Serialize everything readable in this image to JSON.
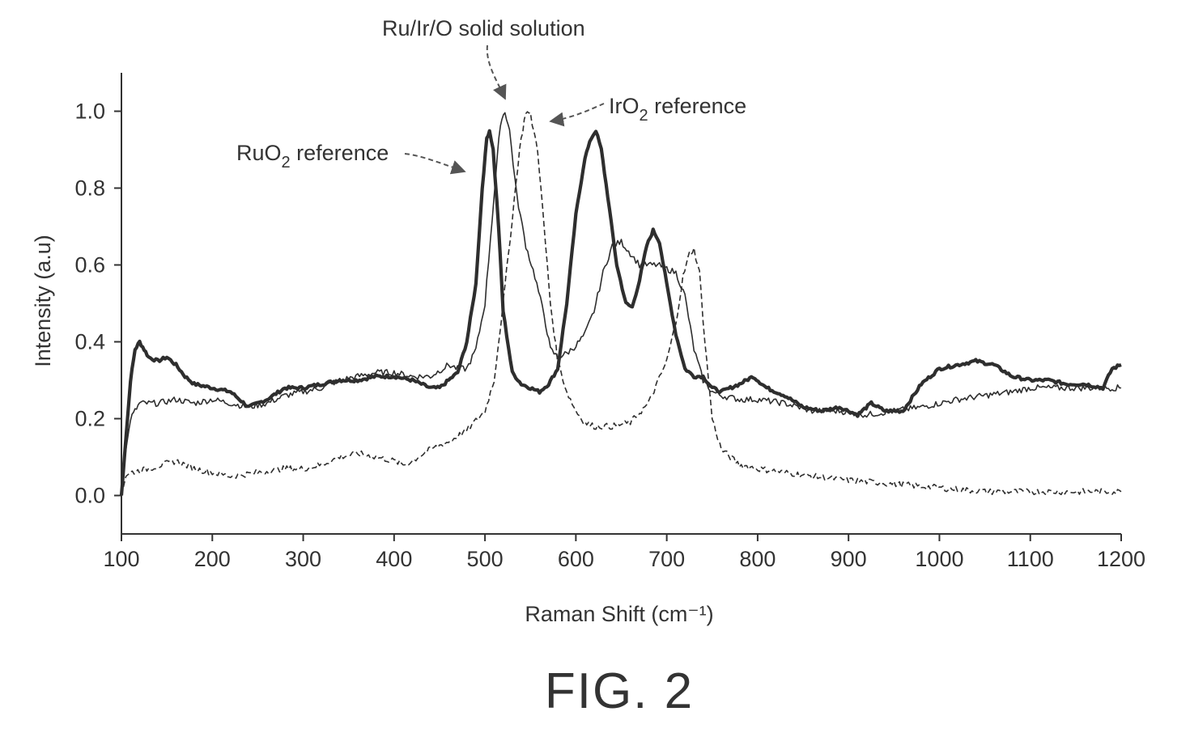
{
  "chart_data": {
    "type": "line",
    "title": "",
    "xlabel": "Raman Shift (cm⁻¹)",
    "ylabel": "Intensity (a.u)",
    "xlim": [
      100,
      1200
    ],
    "ylim": [
      -0.1,
      1.1
    ],
    "xticks": [
      100,
      200,
      300,
      400,
      500,
      600,
      700,
      800,
      900,
      1000,
      1100,
      1200
    ],
    "yticks": [
      0.0,
      0.2,
      0.4,
      0.6,
      0.8,
      1.0
    ],
    "ytick_labels": [
      "0.0",
      "0.2",
      "0.4",
      "0.6",
      "0.8",
      "1.0"
    ],
    "grid": false,
    "legend": "none",
    "series": [
      {
        "name": "RuO2 reference",
        "style": "thick-solid",
        "points": [
          [
            100,
            0.0
          ],
          [
            105,
            0.15
          ],
          [
            110,
            0.3
          ],
          [
            115,
            0.38
          ],
          [
            120,
            0.4
          ],
          [
            125,
            0.38
          ],
          [
            130,
            0.36
          ],
          [
            140,
            0.35
          ],
          [
            150,
            0.36
          ],
          [
            160,
            0.34
          ],
          [
            170,
            0.31
          ],
          [
            180,
            0.29
          ],
          [
            200,
            0.28
          ],
          [
            220,
            0.27
          ],
          [
            240,
            0.23
          ],
          [
            260,
            0.25
          ],
          [
            280,
            0.28
          ],
          [
            300,
            0.28
          ],
          [
            320,
            0.29
          ],
          [
            340,
            0.3
          ],
          [
            360,
            0.3
          ],
          [
            380,
            0.31
          ],
          [
            400,
            0.31
          ],
          [
            420,
            0.3
          ],
          [
            430,
            0.29
          ],
          [
            440,
            0.28
          ],
          [
            450,
            0.28
          ],
          [
            460,
            0.3
          ],
          [
            470,
            0.32
          ],
          [
            480,
            0.4
          ],
          [
            490,
            0.55
          ],
          [
            497,
            0.8
          ],
          [
            502,
            0.93
          ],
          [
            505,
            0.95
          ],
          [
            509,
            0.9
          ],
          [
            515,
            0.7
          ],
          [
            520,
            0.48
          ],
          [
            530,
            0.32
          ],
          [
            540,
            0.29
          ],
          [
            550,
            0.28
          ],
          [
            560,
            0.27
          ],
          [
            570,
            0.29
          ],
          [
            580,
            0.33
          ],
          [
            590,
            0.5
          ],
          [
            600,
            0.73
          ],
          [
            610,
            0.88
          ],
          [
            617,
            0.93
          ],
          [
            622,
            0.95
          ],
          [
            628,
            0.9
          ],
          [
            635,
            0.78
          ],
          [
            645,
            0.6
          ],
          [
            655,
            0.5
          ],
          [
            662,
            0.49
          ],
          [
            670,
            0.56
          ],
          [
            678,
            0.65
          ],
          [
            685,
            0.69
          ],
          [
            692,
            0.66
          ],
          [
            700,
            0.55
          ],
          [
            710,
            0.42
          ],
          [
            720,
            0.33
          ],
          [
            730,
            0.31
          ],
          [
            740,
            0.31
          ],
          [
            750,
            0.28
          ],
          [
            760,
            0.27
          ],
          [
            780,
            0.29
          ],
          [
            795,
            0.31
          ],
          [
            810,
            0.28
          ],
          [
            830,
            0.26
          ],
          [
            850,
            0.23
          ],
          [
            870,
            0.22
          ],
          [
            890,
            0.23
          ],
          [
            910,
            0.21
          ],
          [
            925,
            0.24
          ],
          [
            940,
            0.22
          ],
          [
            960,
            0.22
          ],
          [
            980,
            0.29
          ],
          [
            1000,
            0.33
          ],
          [
            1020,
            0.34
          ],
          [
            1040,
            0.35
          ],
          [
            1060,
            0.34
          ],
          [
            1080,
            0.31
          ],
          [
            1100,
            0.3
          ],
          [
            1120,
            0.3
          ],
          [
            1140,
            0.29
          ],
          [
            1160,
            0.29
          ],
          [
            1180,
            0.28
          ],
          [
            1190,
            0.33
          ],
          [
            1200,
            0.34
          ]
        ]
      },
      {
        "name": "Ru/Ir/O solid solution",
        "style": "thin-solid",
        "points": [
          [
            100,
            0.0
          ],
          [
            105,
            0.12
          ],
          [
            110,
            0.2
          ],
          [
            115,
            0.22
          ],
          [
            120,
            0.24
          ],
          [
            140,
            0.24
          ],
          [
            160,
            0.25
          ],
          [
            180,
            0.24
          ],
          [
            200,
            0.25
          ],
          [
            220,
            0.24
          ],
          [
            240,
            0.23
          ],
          [
            260,
            0.24
          ],
          [
            280,
            0.26
          ],
          [
            300,
            0.27
          ],
          [
            320,
            0.28
          ],
          [
            340,
            0.3
          ],
          [
            360,
            0.31
          ],
          [
            380,
            0.32
          ],
          [
            400,
            0.32
          ],
          [
            420,
            0.31
          ],
          [
            440,
            0.31
          ],
          [
            460,
            0.34
          ],
          [
            470,
            0.33
          ],
          [
            480,
            0.33
          ],
          [
            490,
            0.38
          ],
          [
            500,
            0.5
          ],
          [
            510,
            0.78
          ],
          [
            517,
            0.97
          ],
          [
            522,
            1.0
          ],
          [
            527,
            0.95
          ],
          [
            535,
            0.78
          ],
          [
            545,
            0.65
          ],
          [
            555,
            0.57
          ],
          [
            565,
            0.47
          ],
          [
            572,
            0.38
          ],
          [
            580,
            0.36
          ],
          [
            590,
            0.37
          ],
          [
            600,
            0.39
          ],
          [
            610,
            0.42
          ],
          [
            620,
            0.48
          ],
          [
            630,
            0.58
          ],
          [
            640,
            0.65
          ],
          [
            650,
            0.66
          ],
          [
            660,
            0.63
          ],
          [
            670,
            0.6
          ],
          [
            680,
            0.6
          ],
          [
            690,
            0.6
          ],
          [
            700,
            0.59
          ],
          [
            710,
            0.58
          ],
          [
            720,
            0.52
          ],
          [
            730,
            0.38
          ],
          [
            740,
            0.3
          ],
          [
            750,
            0.27
          ],
          [
            760,
            0.26
          ],
          [
            780,
            0.25
          ],
          [
            800,
            0.25
          ],
          [
            830,
            0.24
          ],
          [
            860,
            0.22
          ],
          [
            890,
            0.22
          ],
          [
            920,
            0.21
          ],
          [
            950,
            0.22
          ],
          [
            980,
            0.23
          ],
          [
            1000,
            0.24
          ],
          [
            1020,
            0.25
          ],
          [
            1050,
            0.26
          ],
          [
            1080,
            0.27
          ],
          [
            1100,
            0.28
          ],
          [
            1120,
            0.28
          ],
          [
            1150,
            0.28
          ],
          [
            1180,
            0.28
          ],
          [
            1200,
            0.28
          ]
        ]
      },
      {
        "name": "IrO2 reference",
        "style": "dashed",
        "points": [
          [
            100,
            0.0
          ],
          [
            105,
            0.05
          ],
          [
            110,
            0.06
          ],
          [
            130,
            0.07
          ],
          [
            160,
            0.09
          ],
          [
            180,
            0.07
          ],
          [
            200,
            0.06
          ],
          [
            220,
            0.05
          ],
          [
            250,
            0.06
          ],
          [
            280,
            0.07
          ],
          [
            300,
            0.07
          ],
          [
            320,
            0.08
          ],
          [
            340,
            0.1
          ],
          [
            360,
            0.11
          ],
          [
            380,
            0.1
          ],
          [
            400,
            0.09
          ],
          [
            410,
            0.08
          ],
          [
            420,
            0.09
          ],
          [
            440,
            0.12
          ],
          [
            460,
            0.14
          ],
          [
            480,
            0.17
          ],
          [
            500,
            0.22
          ],
          [
            510,
            0.3
          ],
          [
            520,
            0.5
          ],
          [
            530,
            0.72
          ],
          [
            538,
            0.9
          ],
          [
            545,
            1.0
          ],
          [
            550,
            0.99
          ],
          [
            558,
            0.9
          ],
          [
            565,
            0.7
          ],
          [
            572,
            0.5
          ],
          [
            580,
            0.35
          ],
          [
            590,
            0.27
          ],
          [
            600,
            0.22
          ],
          [
            610,
            0.19
          ],
          [
            620,
            0.18
          ],
          [
            640,
            0.18
          ],
          [
            660,
            0.19
          ],
          [
            680,
            0.24
          ],
          [
            700,
            0.35
          ],
          [
            710,
            0.45
          ],
          [
            718,
            0.57
          ],
          [
            725,
            0.63
          ],
          [
            730,
            0.64
          ],
          [
            736,
            0.58
          ],
          [
            742,
            0.4
          ],
          [
            750,
            0.2
          ],
          [
            760,
            0.12
          ],
          [
            780,
            0.08
          ],
          [
            800,
            0.07
          ],
          [
            830,
            0.06
          ],
          [
            860,
            0.05
          ],
          [
            900,
            0.04
          ],
          [
            950,
            0.03
          ],
          [
            1000,
            0.02
          ],
          [
            1050,
            0.01
          ],
          [
            1100,
            0.01
          ],
          [
            1150,
            0.01
          ],
          [
            1200,
            0.01
          ]
        ]
      }
    ],
    "annotations": [
      {
        "text_main": "Ru/Ir/O solid solution",
        "target": [
          522,
          1.02
        ]
      },
      {
        "text_main": "IrO",
        "subscript": "2",
        "text_after": " reference",
        "target": [
          560,
          0.98
        ]
      },
      {
        "text_main": "RuO",
        "subscript": "2",
        "text_after": " reference",
        "target": [
          490,
          0.85
        ]
      }
    ]
  },
  "figure": {
    "caption": "FIG. 2"
  },
  "colors": {
    "ink": "#2e2e2e",
    "text": "#333333",
    "background": "#ffffff"
  }
}
